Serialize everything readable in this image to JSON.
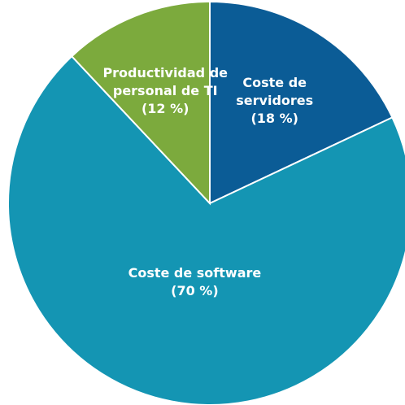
{
  "chart_data": {
    "type": "pie",
    "categories": [
      "Coste de servidores",
      "Coste de software",
      "Productividad de personal de TI"
    ],
    "values": [
      18,
      70,
      12
    ],
    "value_labels": [
      "(18 %)",
      "(70 %)",
      "(12 %)"
    ],
    "colors": [
      "#0b5c96",
      "#1495b3",
      "#7caa3d"
    ]
  }
}
